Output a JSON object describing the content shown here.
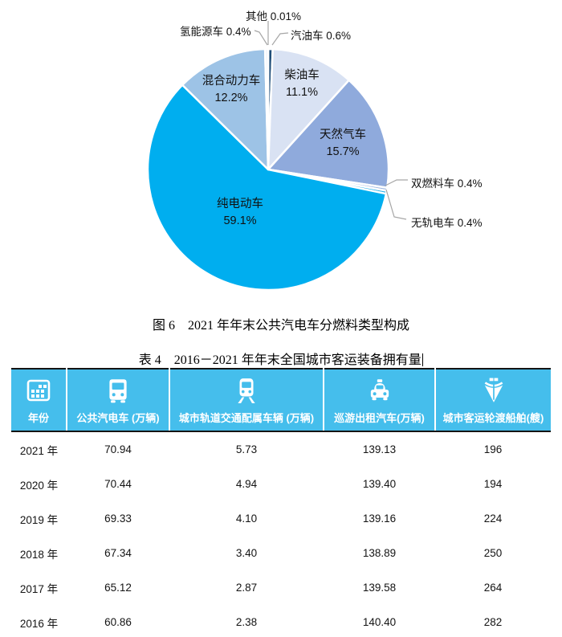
{
  "figure": {
    "caption": "图 6　2021 年年末公共汽电车分燃料类型构成"
  },
  "chart_data": {
    "type": "pie",
    "title": "2021 年年末公共汽电车分燃料类型构成",
    "unit": "percent",
    "start_angle_deg": 0,
    "direction": "clockwise",
    "legend_position": "none",
    "slices": [
      {
        "name": "汽油车",
        "value": 0.6,
        "pct_label": "0.6%",
        "color": "#1F4E79",
        "placement": "outside"
      },
      {
        "name": "柴油车",
        "value": 11.1,
        "pct_label": "11.1%",
        "color": "#D9E2F3",
        "placement": "inside"
      },
      {
        "name": "天然气车",
        "value": 15.7,
        "pct_label": "15.7%",
        "color": "#8FAADC",
        "placement": "inside"
      },
      {
        "name": "双燃料车",
        "value": 0.4,
        "pct_label": "0.4%",
        "color": "#9DB7E0",
        "placement": "outside"
      },
      {
        "name": "无轨电车",
        "value": 0.4,
        "pct_label": "0.4%",
        "color": "#29B0E8",
        "placement": "outside"
      },
      {
        "name": "纯电动车",
        "value": 59.1,
        "pct_label": "59.1%",
        "color": "#00AEEF",
        "placement": "inside"
      },
      {
        "name": "混合动力车",
        "value": 12.2,
        "pct_label": "12.2%",
        "color": "#9DC3E6",
        "placement": "inside"
      },
      {
        "name": "氢能源车",
        "value": 0.4,
        "pct_label": "0.4%",
        "color": "#E9EFF9",
        "placement": "outside"
      },
      {
        "name": "其他",
        "value": 0.01,
        "pct_label": "0.01%",
        "color": "#FBFCFE",
        "placement": "outside"
      }
    ]
  },
  "table_section": {
    "caption": "表 4　2016－2021 年年末全国城市客运装备拥有量",
    "header_bg": "#45BEEC",
    "columns": [
      {
        "label": "年份",
        "icon": "calendar-icon"
      },
      {
        "label": "公共汽电车 (万辆)",
        "icon": "bus-icon"
      },
      {
        "label": "城市轨道交通配属车辆 (万辆)",
        "icon": "train-icon"
      },
      {
        "label": "巡游出租汽车(万辆)",
        "icon": "taxi-icon"
      },
      {
        "label": "城市客运轮渡船舶(艘)",
        "icon": "ship-icon"
      }
    ],
    "rows": [
      [
        "2021 年",
        "70.94",
        "5.73",
        "139.13",
        "196"
      ],
      [
        "2020 年",
        "70.44",
        "4.94",
        "139.40",
        "194"
      ],
      [
        "2019 年",
        "69.33",
        "4.10",
        "139.16",
        "224"
      ],
      [
        "2018 年",
        "67.34",
        "3.40",
        "138.89",
        "250"
      ],
      [
        "2017 年",
        "65.12",
        "2.87",
        "139.58",
        "264"
      ],
      [
        "2016 年",
        "60.86",
        "2.38",
        "140.40",
        "282"
      ]
    ]
  }
}
